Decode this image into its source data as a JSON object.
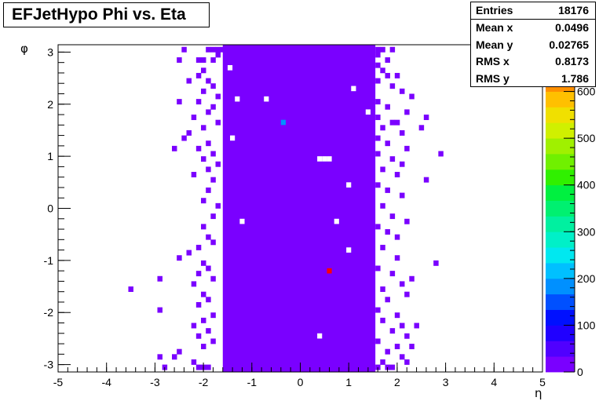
{
  "title": "EFJetHypo Phi vs. Eta",
  "stats": [
    {
      "label": "Entries",
      "value": "18176"
    },
    {
      "label": "Mean x",
      "value": "0.0496"
    },
    {
      "label": "Mean y",
      "value": "0.02765"
    },
    {
      "label": "RMS x",
      "value": "0.8173"
    },
    {
      "label": "RMS y",
      "value": "1.786"
    }
  ],
  "colors": {
    "frame": "#000000",
    "body_fill": "#7a00ff",
    "cyan_spot": "#0090ff",
    "red_spot": "#ff0000"
  },
  "chart_data": {
    "type": "heatmap",
    "title": "EFJetHypo Phi vs. Eta",
    "xlabel": "η",
    "ylabel": "φ",
    "xlim": [
      -5,
      5
    ],
    "ylim": [
      -3.14159,
      3.14159
    ],
    "zlim": [
      0,
      700
    ],
    "grid": false,
    "x_ticks": [
      -5,
      -4,
      -3,
      -2,
      -1,
      0,
      1,
      2,
      3,
      4,
      5
    ],
    "y_ticks": [
      -3,
      -2,
      -1,
      0,
      1,
      2,
      3
    ],
    "z_ticks": [
      0,
      100,
      200,
      300,
      400,
      500,
      600,
      700
    ],
    "palette": [
      "#7a00ff",
      "#5000ff",
      "#2000ff",
      "#0010ff",
      "#0050ff",
      "#0090ff",
      "#00c0ff",
      "#00e8f0",
      "#00f0c8",
      "#00f0a0",
      "#00f070",
      "#00f040",
      "#30f000",
      "#70f000",
      "#a0f000",
      "#d0f000",
      "#f0e000",
      "#ffc000",
      "#ff9000",
      "#ff6000",
      "#ff0000"
    ],
    "core_band": {
      "eta_min": -1.6,
      "eta_max": 1.55,
      "value": 20
    },
    "hot_cells": [
      {
        "eta": -0.35,
        "phi": 1.65,
        "value": 195
      },
      {
        "eta": 0.6,
        "phi": -1.2,
        "value": 700
      }
    ],
    "holes": [
      {
        "eta": -0.7,
        "phi": 2.1
      },
      {
        "eta": 0.4,
        "phi": 0.95
      },
      {
        "eta": 0.5,
        "phi": 0.95
      },
      {
        "eta": 0.6,
        "phi": 0.95
      },
      {
        "eta": 0.4,
        "phi": -2.45
      },
      {
        "eta": 1.1,
        "phi": 2.3
      },
      {
        "eta": 1.0,
        "phi": -0.8
      },
      {
        "eta": 0.75,
        "phi": -0.25
      },
      {
        "eta": -1.2,
        "phi": -0.25
      },
      {
        "eta": -1.3,
        "phi": 2.1
      },
      {
        "eta": -1.4,
        "phi": 1.35
      },
      {
        "eta": 1.0,
        "phi": 0.45
      },
      {
        "eta": -1.45,
        "phi": 2.7
      },
      {
        "eta": 1.4,
        "phi": 1.85
      }
    ],
    "scatter_cells": [
      {
        "eta": -1.6,
        "phi": 3.05
      },
      {
        "eta": -1.7,
        "phi": 3.05
      },
      {
        "eta": -1.8,
        "phi": 3.05
      },
      {
        "eta": -1.9,
        "phi": 3.05
      },
      {
        "eta": -1.7,
        "phi": 2.95
      },
      {
        "eta": -1.8,
        "phi": 2.85
      },
      {
        "eta": -2.0,
        "phi": 2.85
      },
      {
        "eta": -2.1,
        "phi": 2.85
      },
      {
        "eta": -2.4,
        "phi": 3.05
      },
      {
        "eta": -2.5,
        "phi": 2.85
      },
      {
        "eta": -2.0,
        "phi": 2.65
      },
      {
        "eta": -2.1,
        "phi": 2.55
      },
      {
        "eta": -1.9,
        "phi": 2.45
      },
      {
        "eta": -2.3,
        "phi": 2.45
      },
      {
        "eta": -1.8,
        "phi": 2.35
      },
      {
        "eta": -2.0,
        "phi": 2.25
      },
      {
        "eta": -1.7,
        "phi": 2.15
      },
      {
        "eta": -2.1,
        "phi": 2.05
      },
      {
        "eta": -2.5,
        "phi": 2.05
      },
      {
        "eta": -1.8,
        "phi": 1.95
      },
      {
        "eta": -1.9,
        "phi": 1.85
      },
      {
        "eta": -2.2,
        "phi": 1.75
      },
      {
        "eta": -1.7,
        "phi": 1.65
      },
      {
        "eta": -2.0,
        "phi": 1.55
      },
      {
        "eta": -2.3,
        "phi": 1.45
      },
      {
        "eta": -2.4,
        "phi": 1.35
      },
      {
        "eta": -1.9,
        "phi": 1.25
      },
      {
        "eta": -2.1,
        "phi": 1.15
      },
      {
        "eta": -2.6,
        "phi": 1.15
      },
      {
        "eta": -1.8,
        "phi": 1.05
      },
      {
        "eta": -2.0,
        "phi": 0.95
      },
      {
        "eta": -1.7,
        "phi": 0.85
      },
      {
        "eta": -1.9,
        "phi": 0.75
      },
      {
        "eta": -2.2,
        "phi": 0.65
      },
      {
        "eta": -1.8,
        "phi": 0.55
      },
      {
        "eta": -1.9,
        "phi": 0.35
      },
      {
        "eta": -2.0,
        "phi": 0.15
      },
      {
        "eta": -1.7,
        "phi": 0.05
      },
      {
        "eta": -1.8,
        "phi": -0.15
      },
      {
        "eta": -2.0,
        "phi": -0.35
      },
      {
        "eta": -1.9,
        "phi": -0.55
      },
      {
        "eta": -1.8,
        "phi": -0.65
      },
      {
        "eta": -2.1,
        "phi": -0.75
      },
      {
        "eta": -2.3,
        "phi": -0.85
      },
      {
        "eta": -2.5,
        "phi": -0.95
      },
      {
        "eta": -2.0,
        "phi": -1.05
      },
      {
        "eta": -1.9,
        "phi": -1.15
      },
      {
        "eta": -2.1,
        "phi": -1.25
      },
      {
        "eta": -1.8,
        "phi": -1.35
      },
      {
        "eta": -2.9,
        "phi": -1.35
      },
      {
        "eta": -3.5,
        "phi": -1.55
      },
      {
        "eta": -2.2,
        "phi": -1.45
      },
      {
        "eta": -2.0,
        "phi": -1.65
      },
      {
        "eta": -1.9,
        "phi": -1.75
      },
      {
        "eta": -2.1,
        "phi": -1.85
      },
      {
        "eta": -2.9,
        "phi": -1.95
      },
      {
        "eta": -1.8,
        "phi": -2.05
      },
      {
        "eta": -2.0,
        "phi": -2.15
      },
      {
        "eta": -2.2,
        "phi": -2.25
      },
      {
        "eta": -1.9,
        "phi": -2.35
      },
      {
        "eta": -2.1,
        "phi": -2.45
      },
      {
        "eta": -1.8,
        "phi": -2.55
      },
      {
        "eta": -2.0,
        "phi": -2.65
      },
      {
        "eta": -2.5,
        "phi": -2.75
      },
      {
        "eta": -2.6,
        "phi": -2.85
      },
      {
        "eta": -2.9,
        "phi": -2.85
      },
      {
        "eta": -2.2,
        "phi": -2.95
      },
      {
        "eta": -1.9,
        "phi": -3.05
      },
      {
        "eta": -2.0,
        "phi": -3.05
      },
      {
        "eta": -2.1,
        "phi": -3.05
      },
      {
        "eta": -2.8,
        "phi": -3.05
      },
      {
        "eta": 1.6,
        "phi": 3.05
      },
      {
        "eta": 1.7,
        "phi": 3.05
      },
      {
        "eta": 1.9,
        "phi": 3.05
      },
      {
        "eta": 1.6,
        "phi": 2.95
      },
      {
        "eta": 1.8,
        "phi": 2.85
      },
      {
        "eta": 1.6,
        "phi": 2.75
      },
      {
        "eta": 1.7,
        "phi": 2.65
      },
      {
        "eta": 1.8,
        "phi": 2.55
      },
      {
        "eta": 2.0,
        "phi": 2.55
      },
      {
        "eta": 1.6,
        "phi": 2.45
      },
      {
        "eta": 1.9,
        "phi": 2.35
      },
      {
        "eta": 2.1,
        "phi": 2.25
      },
      {
        "eta": 2.3,
        "phi": 2.15
      },
      {
        "eta": 1.6,
        "phi": 2.05
      },
      {
        "eta": 1.8,
        "phi": 1.95
      },
      {
        "eta": 2.2,
        "phi": 1.85
      },
      {
        "eta": 1.6,
        "phi": 1.75
      },
      {
        "eta": 1.9,
        "phi": 1.65
      },
      {
        "eta": 2.0,
        "phi": 1.65
      },
      {
        "eta": 2.6,
        "phi": 1.75
      },
      {
        "eta": 2.5,
        "phi": 1.55
      },
      {
        "eta": 1.7,
        "phi": 1.55
      },
      {
        "eta": 2.1,
        "phi": 1.45
      },
      {
        "eta": 1.6,
        "phi": 1.35
      },
      {
        "eta": 1.8,
        "phi": 1.25
      },
      {
        "eta": 2.2,
        "phi": 1.15
      },
      {
        "eta": 2.9,
        "phi": 1.05
      },
      {
        "eta": 1.6,
        "phi": 1.05
      },
      {
        "eta": 1.9,
        "phi": 0.95
      },
      {
        "eta": 2.1,
        "phi": 0.85
      },
      {
        "eta": 1.7,
        "phi": 0.75
      },
      {
        "eta": 2.0,
        "phi": 0.65
      },
      {
        "eta": 2.6,
        "phi": 0.55
      },
      {
        "eta": 1.6,
        "phi": 0.45
      },
      {
        "eta": 1.8,
        "phi": 0.35
      },
      {
        "eta": 2.1,
        "phi": 0.25
      },
      {
        "eta": 1.7,
        "phi": 0.05
      },
      {
        "eta": 1.9,
        "phi": -0.15
      },
      {
        "eta": 2.2,
        "phi": -0.25
      },
      {
        "eta": 1.6,
        "phi": -0.35
      },
      {
        "eta": 1.8,
        "phi": -0.45
      },
      {
        "eta": 2.0,
        "phi": -0.55
      },
      {
        "eta": 1.7,
        "phi": -0.75
      },
      {
        "eta": 2.0,
        "phi": -0.95
      },
      {
        "eta": 2.8,
        "phi": -1.05
      },
      {
        "eta": 1.6,
        "phi": -1.15
      },
      {
        "eta": 1.9,
        "phi": -1.25
      },
      {
        "eta": 2.3,
        "phi": -1.35
      },
      {
        "eta": 2.1,
        "phi": -1.45
      },
      {
        "eta": 1.7,
        "phi": -1.55
      },
      {
        "eta": 2.2,
        "phi": -1.65
      },
      {
        "eta": 1.8,
        "phi": -1.75
      },
      {
        "eta": 1.6,
        "phi": -1.95
      },
      {
        "eta": 2.0,
        "phi": -2.05
      },
      {
        "eta": 1.7,
        "phi": -2.15
      },
      {
        "eta": 2.1,
        "phi": -2.25
      },
      {
        "eta": 2.4,
        "phi": -2.25
      },
      {
        "eta": 1.9,
        "phi": -2.35
      },
      {
        "eta": 2.2,
        "phi": -2.45
      },
      {
        "eta": 1.6,
        "phi": -2.55
      },
      {
        "eta": 2.0,
        "phi": -2.65
      },
      {
        "eta": 2.3,
        "phi": -2.65
      },
      {
        "eta": 1.8,
        "phi": -2.75
      },
      {
        "eta": 2.1,
        "phi": -2.85
      },
      {
        "eta": 1.7,
        "phi": -2.95
      },
      {
        "eta": 2.2,
        "phi": -2.95
      },
      {
        "eta": 1.6,
        "phi": -3.05
      },
      {
        "eta": 1.8,
        "phi": -3.05
      },
      {
        "eta": 1.9,
        "phi": -3.05
      }
    ]
  }
}
